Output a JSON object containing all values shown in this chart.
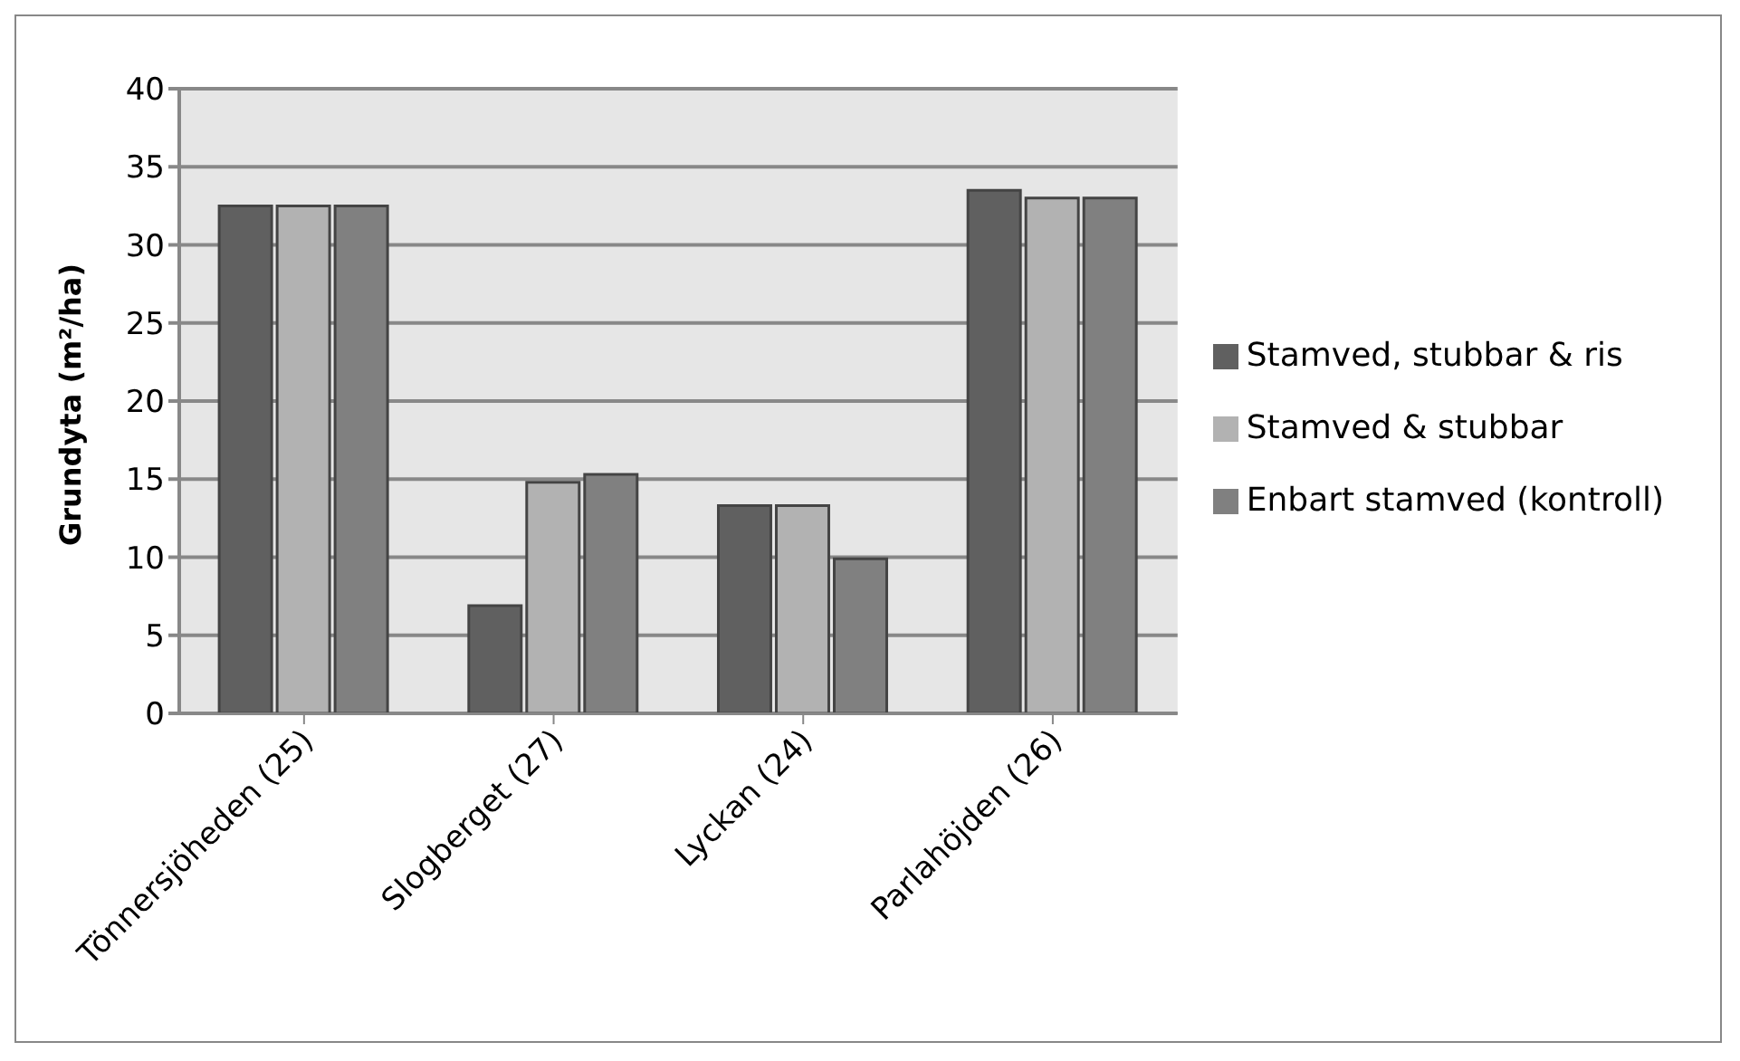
{
  "chart_data": {
    "type": "bar",
    "ylabel": "Grundyta (m²/ha)",
    "categories": [
      "Tönnersjöheden (25)",
      "Slogberget (27)",
      "Lyckan (24)",
      "Parlahöjden (26)"
    ],
    "series": [
      {
        "name": "Stamved, stubbar & ris",
        "color": "#606060",
        "values": [
          32.5,
          6.9,
          13.3,
          33.5
        ]
      },
      {
        "name": "Stamved & stubbar",
        "color": "#b2b2b2",
        "values": [
          32.5,
          14.8,
          13.3,
          33.0
        ]
      },
      {
        "name": "Enbart stamved (kontroll)",
        "color": "#808080",
        "values": [
          32.5,
          15.3,
          9.9,
          33.0
        ]
      }
    ],
    "ylim": [
      0,
      40
    ],
    "yticks": [
      0,
      5,
      10,
      15,
      20,
      25,
      30,
      35,
      40
    ],
    "grid": "y",
    "legend": "right"
  }
}
